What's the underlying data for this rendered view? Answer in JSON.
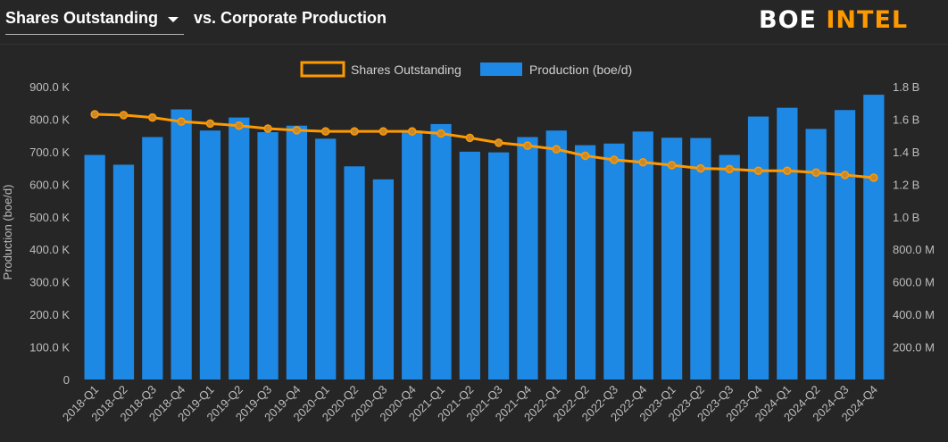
{
  "header": {
    "metric_selected": "Shares Outstanding",
    "vs_label": "vs. Corporate Production",
    "brand_part1": "BOE",
    "brand_part2": "INTEL"
  },
  "colors": {
    "bar": "#1e88e5",
    "line": "#ff9900",
    "accent": "#ff9900",
    "background": "#262626"
  },
  "chart_data": {
    "type": "bar",
    "title": "",
    "categories": [
      "2018-Q1",
      "2018-Q2",
      "2018-Q3",
      "2018-Q4",
      "2019-Q1",
      "2019-Q2",
      "2019-Q3",
      "2019-Q4",
      "2020-Q1",
      "2020-Q2",
      "2020-Q3",
      "2020-Q4",
      "2021-Q1",
      "2021-Q2",
      "2021-Q3",
      "2021-Q4",
      "2022-Q1",
      "2022-Q2",
      "2022-Q3",
      "2022-Q4",
      "2023-Q1",
      "2023-Q2",
      "2023-Q3",
      "2023-Q4",
      "2024-Q1",
      "2024-Q2",
      "2024-Q3",
      "2024-Q4"
    ],
    "series": [
      {
        "name": "Production (boe/d)",
        "type": "bar",
        "axis": "left",
        "values": [
          690000,
          660000,
          745000,
          830000,
          765000,
          805000,
          760000,
          780000,
          740000,
          655000,
          615000,
          765000,
          785000,
          700000,
          698000,
          745000,
          765000,
          720000,
          725000,
          762000,
          743000,
          742000,
          690000,
          808000,
          835000,
          770000,
          828000,
          875000
        ]
      },
      {
        "name": "Shares Outstanding",
        "type": "line",
        "axis": "right",
        "values": [
          1630000000,
          1625000000,
          1610000000,
          1585000000,
          1573000000,
          1560000000,
          1542000000,
          1532000000,
          1525000000,
          1525000000,
          1525000000,
          1525000000,
          1512000000,
          1485000000,
          1455000000,
          1437000000,
          1415000000,
          1375000000,
          1350000000,
          1335000000,
          1317000000,
          1297000000,
          1293000000,
          1283000000,
          1283000000,
          1272000000,
          1257000000,
          1240000000
        ]
      }
    ],
    "ylabel": "Production (boe/d)",
    "ylim": [
      0,
      900000
    ],
    "y_ticks": [
      "0",
      "100.0 K",
      "200.0 K",
      "300.0 K",
      "400.0 K",
      "500.0 K",
      "600.0 K",
      "700.0 K",
      "800.0 K",
      "900.0 K"
    ],
    "y2lim": [
      0,
      1800000000
    ],
    "y2_ticks": [
      "",
      "200.0 M",
      "400.0 M",
      "600.0 M",
      "800.0 M",
      "1.0 B",
      "1.2 B",
      "1.4 B",
      "1.6 B",
      "1.8 B"
    ],
    "legend": [
      "Shares Outstanding",
      "Production (boe/d)"
    ],
    "legend_position": "top-center",
    "grid": false
  }
}
